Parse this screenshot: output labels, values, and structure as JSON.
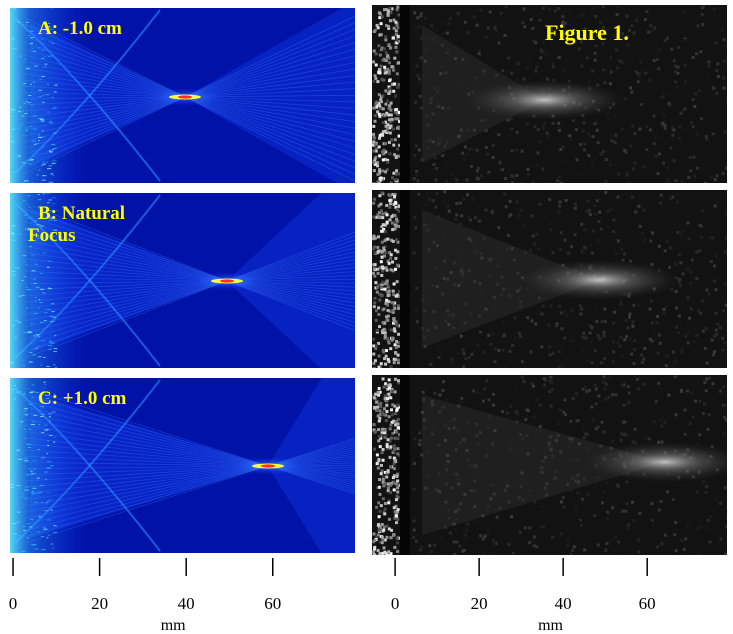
{
  "figure_label": "Figure 1.",
  "panels": [
    {
      "label_lines": [
        "A:  -1.0 cm"
      ]
    },
    {
      "label_lines": [
        "B:  Natural",
        "Focus"
      ]
    },
    {
      "label_lines": [
        "C:  +1.0 cm"
      ]
    }
  ],
  "axes": [
    {
      "xlim": [
        -0.7,
        79
      ],
      "ticks": [
        0,
        20,
        40,
        60
      ],
      "unit": "mm"
    },
    {
      "xlim": [
        -5.5,
        79
      ],
      "ticks": [
        0,
        20,
        40,
        60
      ],
      "unit": "mm"
    }
  ]
}
